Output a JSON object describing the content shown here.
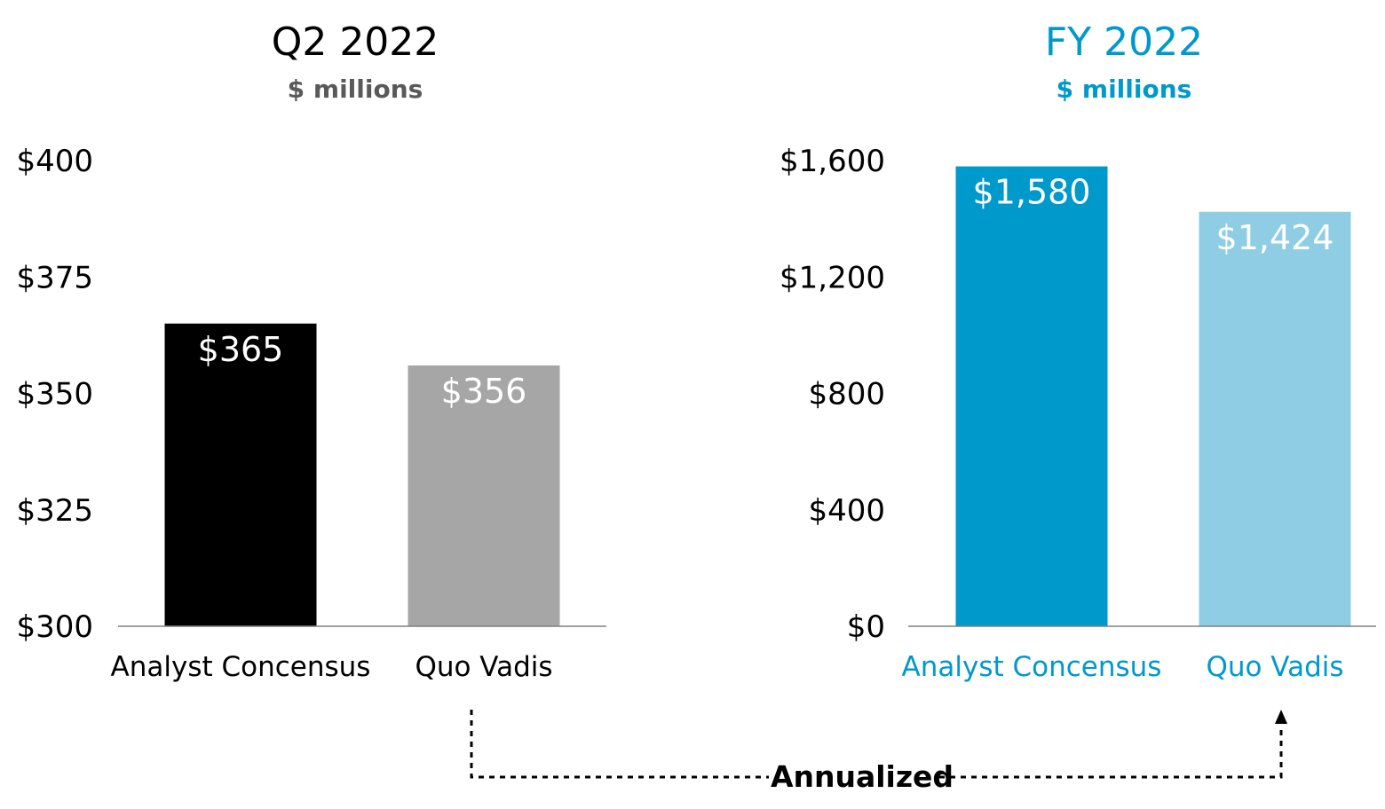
{
  "colors": {
    "q2_text": "#000000",
    "q2_subtitle": "#595959",
    "fy_text": "#0099CC",
    "bar_black": "#000000",
    "bar_gray": "#A6A6A6",
    "bar_blue": "#0099CC",
    "bar_lightblue": "#8ECDE4",
    "axis": "#808080"
  },
  "annotation": {
    "label": "Annualized",
    "arrow": "dotted-arrow-icon"
  },
  "chart_data": [
    {
      "type": "bar",
      "title": "Q2 2022",
      "subtitle": "$ millions",
      "categories": [
        "Analyst Concensus",
        "Quo Vadis"
      ],
      "values": [
        365,
        356
      ],
      "value_labels": [
        "$365",
        "$356"
      ],
      "ylim": [
        300,
        400
      ],
      "yticks": [
        300,
        325,
        350,
        375,
        400
      ],
      "ytick_labels": [
        "$300",
        "$325",
        "$350",
        "$375",
        "$400"
      ],
      "bar_colors": [
        "#000000",
        "#A6A6A6"
      ],
      "title_color": "#000000",
      "subtitle_color": "#595959",
      "category_color": "#000000",
      "grid": false
    },
    {
      "type": "bar",
      "title": "FY 2022",
      "subtitle": "$ millions",
      "categories": [
        "Analyst Concensus",
        "Quo Vadis"
      ],
      "values": [
        1580,
        1424
      ],
      "value_labels": [
        "$1,580",
        "$1,424"
      ],
      "ylim": [
        0,
        1600
      ],
      "yticks": [
        0,
        400,
        800,
        1200,
        1600
      ],
      "ytick_labels": [
        "$0",
        "$400",
        "$800",
        "$1,200",
        "$1,600"
      ],
      "bar_colors": [
        "#0099CC",
        "#8ECDE4"
      ],
      "title_color": "#0099CC",
      "subtitle_color": "#0099CC",
      "category_color": "#0099CC",
      "grid": false
    }
  ]
}
